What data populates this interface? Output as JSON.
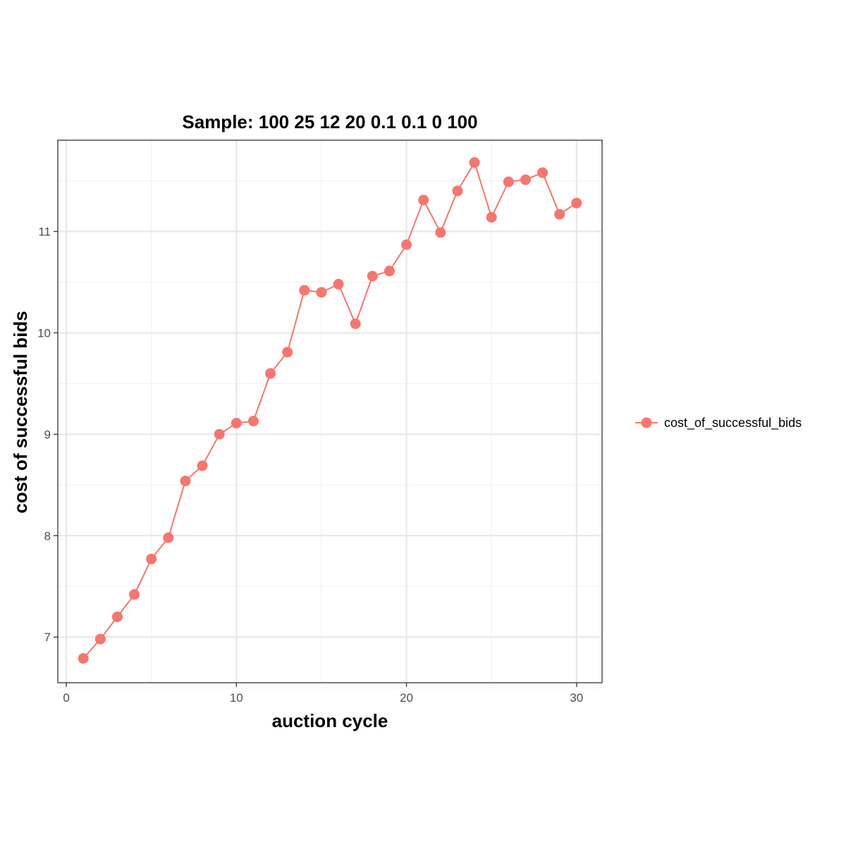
{
  "chart_data": {
    "type": "line",
    "title": "Sample: 100 25 12 20 0.1 0.1 0 100",
    "xlabel": "auction cycle",
    "ylabel": "cost of successful bids",
    "xlim": [
      -0.5,
      31.5
    ],
    "ylim": [
      6.55,
      11.9
    ],
    "x_ticks": [
      0,
      10,
      20,
      30
    ],
    "x_tick_labels": [
      "0",
      "10",
      "20",
      "30"
    ],
    "y_ticks": [
      7,
      8,
      9,
      10,
      11
    ],
    "y_tick_labels": [
      "7",
      "8",
      "9",
      "10",
      "11"
    ],
    "x_minor_ticks": [
      5,
      15,
      25
    ],
    "y_minor_ticks": [
      6.5,
      7.5,
      8.5,
      9.5,
      10.5,
      11.5
    ],
    "grid": true,
    "legend_position": "right",
    "series": [
      {
        "name": "cost_of_successful_bids",
        "color": "#F8766D",
        "x": [
          1,
          2,
          3,
          4,
          5,
          6,
          7,
          8,
          9,
          10,
          11,
          12,
          13,
          14,
          15,
          16,
          17,
          18,
          19,
          20,
          21,
          22,
          23,
          24,
          25,
          26,
          27,
          28,
          29,
          30
        ],
        "y": [
          6.79,
          6.98,
          7.2,
          7.42,
          7.77,
          7.98,
          8.54,
          8.69,
          9.0,
          9.11,
          9.13,
          9.6,
          9.81,
          10.42,
          10.4,
          10.48,
          10.09,
          10.56,
          10.61,
          10.87,
          11.31,
          10.99,
          11.4,
          11.68,
          11.14,
          11.49,
          11.51,
          11.58,
          11.17,
          11.28
        ]
      }
    ]
  }
}
